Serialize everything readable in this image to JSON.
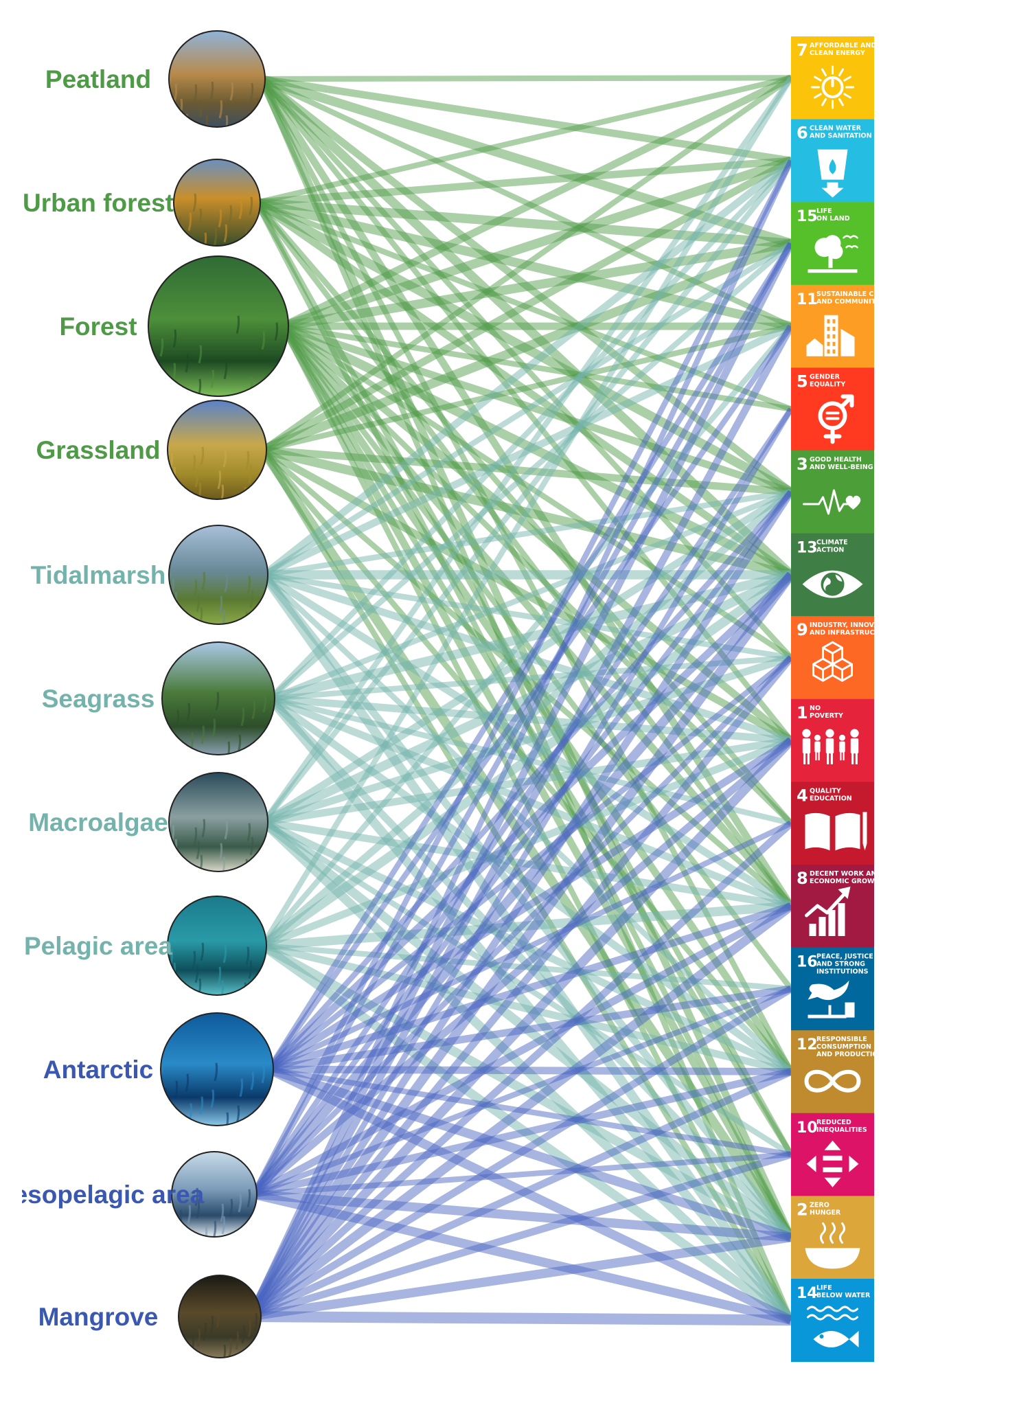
{
  "ecosystems": [
    {
      "id": "peatland",
      "label": "Peatland",
      "color": "#4f9a47",
      "line_color": "#4f9a47",
      "photo": "peatland-photo"
    },
    {
      "id": "urban_forest",
      "label": "Urban forest",
      "color": "#4f9a47",
      "line_color": "#4f9a47",
      "photo": "urban-forest-photo"
    },
    {
      "id": "forest",
      "label": "Forest",
      "color": "#4f9a47",
      "line_color": "#4f9a47",
      "photo": "forest-photo"
    },
    {
      "id": "grassland",
      "label": "Grassland",
      "color": "#4f9a47",
      "line_color": "#4f9a47",
      "photo": "grassland-photo"
    },
    {
      "id": "tidalmarsh",
      "label": "Tidalmarsh",
      "color": "#74b3ab",
      "line_color": "#74b3ab",
      "photo": "tidalmarsh-photo"
    },
    {
      "id": "seagrass",
      "label": "Seagrass",
      "color": "#74b3ab",
      "line_color": "#74b3ab",
      "photo": "seagrass-photo"
    },
    {
      "id": "macroalgae",
      "label": "Macroalgae",
      "color": "#74b3ab",
      "line_color": "#74b3ab",
      "photo": "macroalgae-photo"
    },
    {
      "id": "pelagic_area",
      "label": "Pelagic area",
      "color": "#74b3ab",
      "line_color": "#74b3ab",
      "photo": "pelagic-photo"
    },
    {
      "id": "antarctic",
      "label": "Antarctic",
      "color": "#3a58b0",
      "line_color": "#4a64c0",
      "photo": "antarctic-photo"
    },
    {
      "id": "mesopelagic_area",
      "label": "Mesopelagic area",
      "color": "#3a58b0",
      "line_color": "#4a64c0",
      "photo": "mesopelagic-photo"
    },
    {
      "id": "mangrove",
      "label": "Mangrove",
      "color": "#3a58b0",
      "line_color": "#4a64c0",
      "photo": "mangrove-photo"
    }
  ],
  "sdgs": [
    {
      "num": "7",
      "title": [
        "AFFORDABLE AND",
        "CLEAN ENERGY"
      ],
      "color": "#fcc30b",
      "icon": "sun-power-icon"
    },
    {
      "num": "6",
      "title": [
        "CLEAN WATER",
        "AND SANITATION"
      ],
      "color": "#26bde2",
      "icon": "water-drop-icon"
    },
    {
      "num": "15",
      "title": [
        "LIFE",
        "ON LAND"
      ],
      "color": "#56c02b",
      "icon": "tree-birds-icon"
    },
    {
      "num": "11",
      "title": [
        "SUSTAINABLE CITIES",
        "AND COMMUNITIES"
      ],
      "color": "#fd9d24",
      "icon": "city-buildings-icon"
    },
    {
      "num": "5",
      "title": [
        "GENDER",
        "EQUALITY"
      ],
      "color": "#ff3a21",
      "icon": "gender-symbol-icon"
    },
    {
      "num": "3",
      "title": [
        "GOOD HEALTH",
        "AND WELL-BEING"
      ],
      "color": "#4c9f38",
      "icon": "heartbeat-icon"
    },
    {
      "num": "13",
      "title": [
        "CLIMATE",
        "ACTION"
      ],
      "color": "#3f7e44",
      "icon": "eye-globe-icon"
    },
    {
      "num": "9",
      "title": [
        "INDUSTRY, INNOVATION",
        "AND INFRASTRUCTURE"
      ],
      "color": "#fd6925",
      "icon": "cubes-icon"
    },
    {
      "num": "1",
      "title": [
        "NO",
        "POVERTY"
      ],
      "color": "#e5243b",
      "icon": "family-icon"
    },
    {
      "num": "4",
      "title": [
        "QUALITY",
        "EDUCATION"
      ],
      "color": "#c5192d",
      "icon": "book-pencil-icon"
    },
    {
      "num": "8",
      "title": [
        "DECENT WORK AND",
        "ECONOMIC GROWTH"
      ],
      "color": "#a21942",
      "icon": "growth-chart-icon"
    },
    {
      "num": "16",
      "title": [
        "PEACE, JUSTICE",
        "AND STRONG",
        "INSTITUTIONS"
      ],
      "color": "#00689d",
      "icon": "dove-gavel-icon"
    },
    {
      "num": "12",
      "title": [
        "RESPONSIBLE",
        "CONSUMPTION",
        "AND PRODUCTION"
      ],
      "color": "#bf8b2e",
      "icon": "infinity-icon"
    },
    {
      "num": "10",
      "title": [
        "REDUCED",
        "INEQUALITIES"
      ],
      "color": "#dd1367",
      "icon": "arrows-equal-icon"
    },
    {
      "num": "2",
      "title": [
        "ZERO",
        "HUNGER"
      ],
      "color": "#dda63a",
      "icon": "food-bowl-icon"
    },
    {
      "num": "14",
      "title": [
        "LIFE",
        "BELOW WATER"
      ],
      "color": "#0a97d9",
      "icon": "fish-waves-icon"
    }
  ],
  "links": [
    {
      "from": "peatland",
      "to": "7",
      "weight": 2
    },
    {
      "from": "peatland",
      "to": "6",
      "weight": 3
    },
    {
      "from": "peatland",
      "to": "15",
      "weight": 4
    },
    {
      "from": "peatland",
      "to": "11",
      "weight": 2
    },
    {
      "from": "peatland",
      "to": "3",
      "weight": 3
    },
    {
      "from": "peatland",
      "to": "13",
      "weight": 4
    },
    {
      "from": "peatland",
      "to": "9",
      "weight": 2
    },
    {
      "from": "peatland",
      "to": "1",
      "weight": 2
    },
    {
      "from": "peatland",
      "to": "8",
      "weight": 3
    },
    {
      "from": "peatland",
      "to": "12",
      "weight": 2
    },
    {
      "from": "peatland",
      "to": "2",
      "weight": 3
    },
    {
      "from": "peatland",
      "to": "14",
      "weight": 2
    },
    {
      "from": "urban_forest",
      "to": "7",
      "weight": 2
    },
    {
      "from": "urban_forest",
      "to": "6",
      "weight": 3
    },
    {
      "from": "urban_forest",
      "to": "15",
      "weight": 4
    },
    {
      "from": "urban_forest",
      "to": "11",
      "weight": 4
    },
    {
      "from": "urban_forest",
      "to": "5",
      "weight": 2
    },
    {
      "from": "urban_forest",
      "to": "3",
      "weight": 4
    },
    {
      "from": "urban_forest",
      "to": "13",
      "weight": 3
    },
    {
      "from": "urban_forest",
      "to": "4",
      "weight": 2
    },
    {
      "from": "urban_forest",
      "to": "8",
      "weight": 2
    },
    {
      "from": "urban_forest",
      "to": "10",
      "weight": 2
    },
    {
      "from": "urban_forest",
      "to": "2",
      "weight": 2
    },
    {
      "from": "forest",
      "to": "7",
      "weight": 3
    },
    {
      "from": "forest",
      "to": "6",
      "weight": 4
    },
    {
      "from": "forest",
      "to": "15",
      "weight": 4
    },
    {
      "from": "forest",
      "to": "11",
      "weight": 3
    },
    {
      "from": "forest",
      "to": "5",
      "weight": 2
    },
    {
      "from": "forest",
      "to": "3",
      "weight": 3
    },
    {
      "from": "forest",
      "to": "13",
      "weight": 4
    },
    {
      "from": "forest",
      "to": "9",
      "weight": 2
    },
    {
      "from": "forest",
      "to": "1",
      "weight": 3
    },
    {
      "from": "forest",
      "to": "4",
      "weight": 2
    },
    {
      "from": "forest",
      "to": "8",
      "weight": 3
    },
    {
      "from": "forest",
      "to": "16",
      "weight": 2
    },
    {
      "from": "forest",
      "to": "12",
      "weight": 3
    },
    {
      "from": "forest",
      "to": "10",
      "weight": 2
    },
    {
      "from": "forest",
      "to": "2",
      "weight": 3
    },
    {
      "from": "forest",
      "to": "14",
      "weight": 2
    },
    {
      "from": "grassland",
      "to": "7",
      "weight": 2
    },
    {
      "from": "grassland",
      "to": "6",
      "weight": 3
    },
    {
      "from": "grassland",
      "to": "15",
      "weight": 4
    },
    {
      "from": "grassland",
      "to": "11",
      "weight": 2
    },
    {
      "from": "grassland",
      "to": "3",
      "weight": 3
    },
    {
      "from": "grassland",
      "to": "13",
      "weight": 4
    },
    {
      "from": "grassland",
      "to": "1",
      "weight": 3
    },
    {
      "from": "grassland",
      "to": "8",
      "weight": 2
    },
    {
      "from": "grassland",
      "to": "12",
      "weight": 2
    },
    {
      "from": "grassland",
      "to": "2",
      "weight": 4
    },
    {
      "from": "grassland",
      "to": "14",
      "weight": 2
    },
    {
      "from": "tidalmarsh",
      "to": "6",
      "weight": 3
    },
    {
      "from": "tidalmarsh",
      "to": "15",
      "weight": 2
    },
    {
      "from": "tidalmarsh",
      "to": "11",
      "weight": 3
    },
    {
      "from": "tidalmarsh",
      "to": "3",
      "weight": 2
    },
    {
      "from": "tidalmarsh",
      "to": "13",
      "weight": 4
    },
    {
      "from": "tidalmarsh",
      "to": "9",
      "weight": 2
    },
    {
      "from": "tidalmarsh",
      "to": "1",
      "weight": 3
    },
    {
      "from": "tidalmarsh",
      "to": "8",
      "weight": 3
    },
    {
      "from": "tidalmarsh",
      "to": "12",
      "weight": 2
    },
    {
      "from": "tidalmarsh",
      "to": "2",
      "weight": 3
    },
    {
      "from": "tidalmarsh",
      "to": "14",
      "weight": 4
    },
    {
      "from": "seagrass",
      "to": "6",
      "weight": 2
    },
    {
      "from": "seagrass",
      "to": "15",
      "weight": 2
    },
    {
      "from": "seagrass",
      "to": "3",
      "weight": 2
    },
    {
      "from": "seagrass",
      "to": "13",
      "weight": 4
    },
    {
      "from": "seagrass",
      "to": "9",
      "weight": 2
    },
    {
      "from": "seagrass",
      "to": "1",
      "weight": 3
    },
    {
      "from": "seagrass",
      "to": "4",
      "weight": 2
    },
    {
      "from": "seagrass",
      "to": "8",
      "weight": 3
    },
    {
      "from": "seagrass",
      "to": "12",
      "weight": 3
    },
    {
      "from": "seagrass",
      "to": "2",
      "weight": 3
    },
    {
      "from": "seagrass",
      "to": "14",
      "weight": 4
    },
    {
      "from": "macroalgae",
      "to": "7",
      "weight": 2
    },
    {
      "from": "macroalgae",
      "to": "6",
      "weight": 2
    },
    {
      "from": "macroalgae",
      "to": "3",
      "weight": 3
    },
    {
      "from": "macroalgae",
      "to": "13",
      "weight": 4
    },
    {
      "from": "macroalgae",
      "to": "9",
      "weight": 3
    },
    {
      "from": "macroalgae",
      "to": "1",
      "weight": 3
    },
    {
      "from": "macroalgae",
      "to": "8",
      "weight": 3
    },
    {
      "from": "macroalgae",
      "to": "12",
      "weight": 3
    },
    {
      "from": "macroalgae",
      "to": "10",
      "weight": 2
    },
    {
      "from": "macroalgae",
      "to": "2",
      "weight": 4
    },
    {
      "from": "macroalgae",
      "to": "14",
      "weight": 4
    },
    {
      "from": "pelagic_area",
      "to": "7",
      "weight": 2
    },
    {
      "from": "pelagic_area",
      "to": "11",
      "weight": 2
    },
    {
      "from": "pelagic_area",
      "to": "3",
      "weight": 3
    },
    {
      "from": "pelagic_area",
      "to": "13",
      "weight": 4
    },
    {
      "from": "pelagic_area",
      "to": "1",
      "weight": 3
    },
    {
      "from": "pelagic_area",
      "to": "8",
      "weight": 4
    },
    {
      "from": "pelagic_area",
      "to": "16",
      "weight": 2
    },
    {
      "from": "pelagic_area",
      "to": "12",
      "weight": 3
    },
    {
      "from": "pelagic_area",
      "to": "2",
      "weight": 4
    },
    {
      "from": "pelagic_area",
      "to": "14",
      "weight": 4
    },
    {
      "from": "antarctic",
      "to": "15",
      "weight": 2
    },
    {
      "from": "antarctic",
      "to": "11",
      "weight": 2
    },
    {
      "from": "antarctic",
      "to": "3",
      "weight": 2
    },
    {
      "from": "antarctic",
      "to": "13",
      "weight": 3
    },
    {
      "from": "antarctic",
      "to": "9",
      "weight": 2
    },
    {
      "from": "antarctic",
      "to": "1",
      "weight": 3
    },
    {
      "from": "antarctic",
      "to": "4",
      "weight": 2
    },
    {
      "from": "antarctic",
      "to": "8",
      "weight": 3
    },
    {
      "from": "antarctic",
      "to": "16",
      "weight": 3
    },
    {
      "from": "antarctic",
      "to": "12",
      "weight": 3
    },
    {
      "from": "antarctic",
      "to": "10",
      "weight": 2
    },
    {
      "from": "antarctic",
      "to": "2",
      "weight": 4
    },
    {
      "from": "antarctic",
      "to": "14",
      "weight": 4
    },
    {
      "from": "mesopelagic_area",
      "to": "6",
      "weight": 2
    },
    {
      "from": "mesopelagic_area",
      "to": "15",
      "weight": 2
    },
    {
      "from": "mesopelagic_area",
      "to": "5",
      "weight": 2
    },
    {
      "from": "mesopelagic_area",
      "to": "3",
      "weight": 2
    },
    {
      "from": "mesopelagic_area",
      "to": "13",
      "weight": 4
    },
    {
      "from": "mesopelagic_area",
      "to": "9",
      "weight": 2
    },
    {
      "from": "mesopelagic_area",
      "to": "1",
      "weight": 3
    },
    {
      "from": "mesopelagic_area",
      "to": "8",
      "weight": 3
    },
    {
      "from": "mesopelagic_area",
      "to": "16",
      "weight": 2
    },
    {
      "from": "mesopelagic_area",
      "to": "12",
      "weight": 3
    },
    {
      "from": "mesopelagic_area",
      "to": "10",
      "weight": 2
    },
    {
      "from": "mesopelagic_area",
      "to": "2",
      "weight": 4
    },
    {
      "from": "mesopelagic_area",
      "to": "14",
      "weight": 4
    },
    {
      "from": "mangrove",
      "to": "6",
      "weight": 2
    },
    {
      "from": "mangrove",
      "to": "15",
      "weight": 3
    },
    {
      "from": "mangrove",
      "to": "11",
      "weight": 3
    },
    {
      "from": "mangrove",
      "to": "5",
      "weight": 2
    },
    {
      "from": "mangrove",
      "to": "3",
      "weight": 3
    },
    {
      "from": "mangrove",
      "to": "13",
      "weight": 4
    },
    {
      "from": "mangrove",
      "to": "9",
      "weight": 3
    },
    {
      "from": "mangrove",
      "to": "1",
      "weight": 4
    },
    {
      "from": "mangrove",
      "to": "4",
      "weight": 3
    },
    {
      "from": "mangrove",
      "to": "8",
      "weight": 4
    },
    {
      "from": "mangrove",
      "to": "16",
      "weight": 3
    },
    {
      "from": "mangrove",
      "to": "12",
      "weight": 3
    },
    {
      "from": "mangrove",
      "to": "10",
      "weight": 3
    },
    {
      "from": "mangrove",
      "to": "2",
      "weight": 4
    },
    {
      "from": "mangrove",
      "to": "14",
      "weight": 5
    }
  ]
}
